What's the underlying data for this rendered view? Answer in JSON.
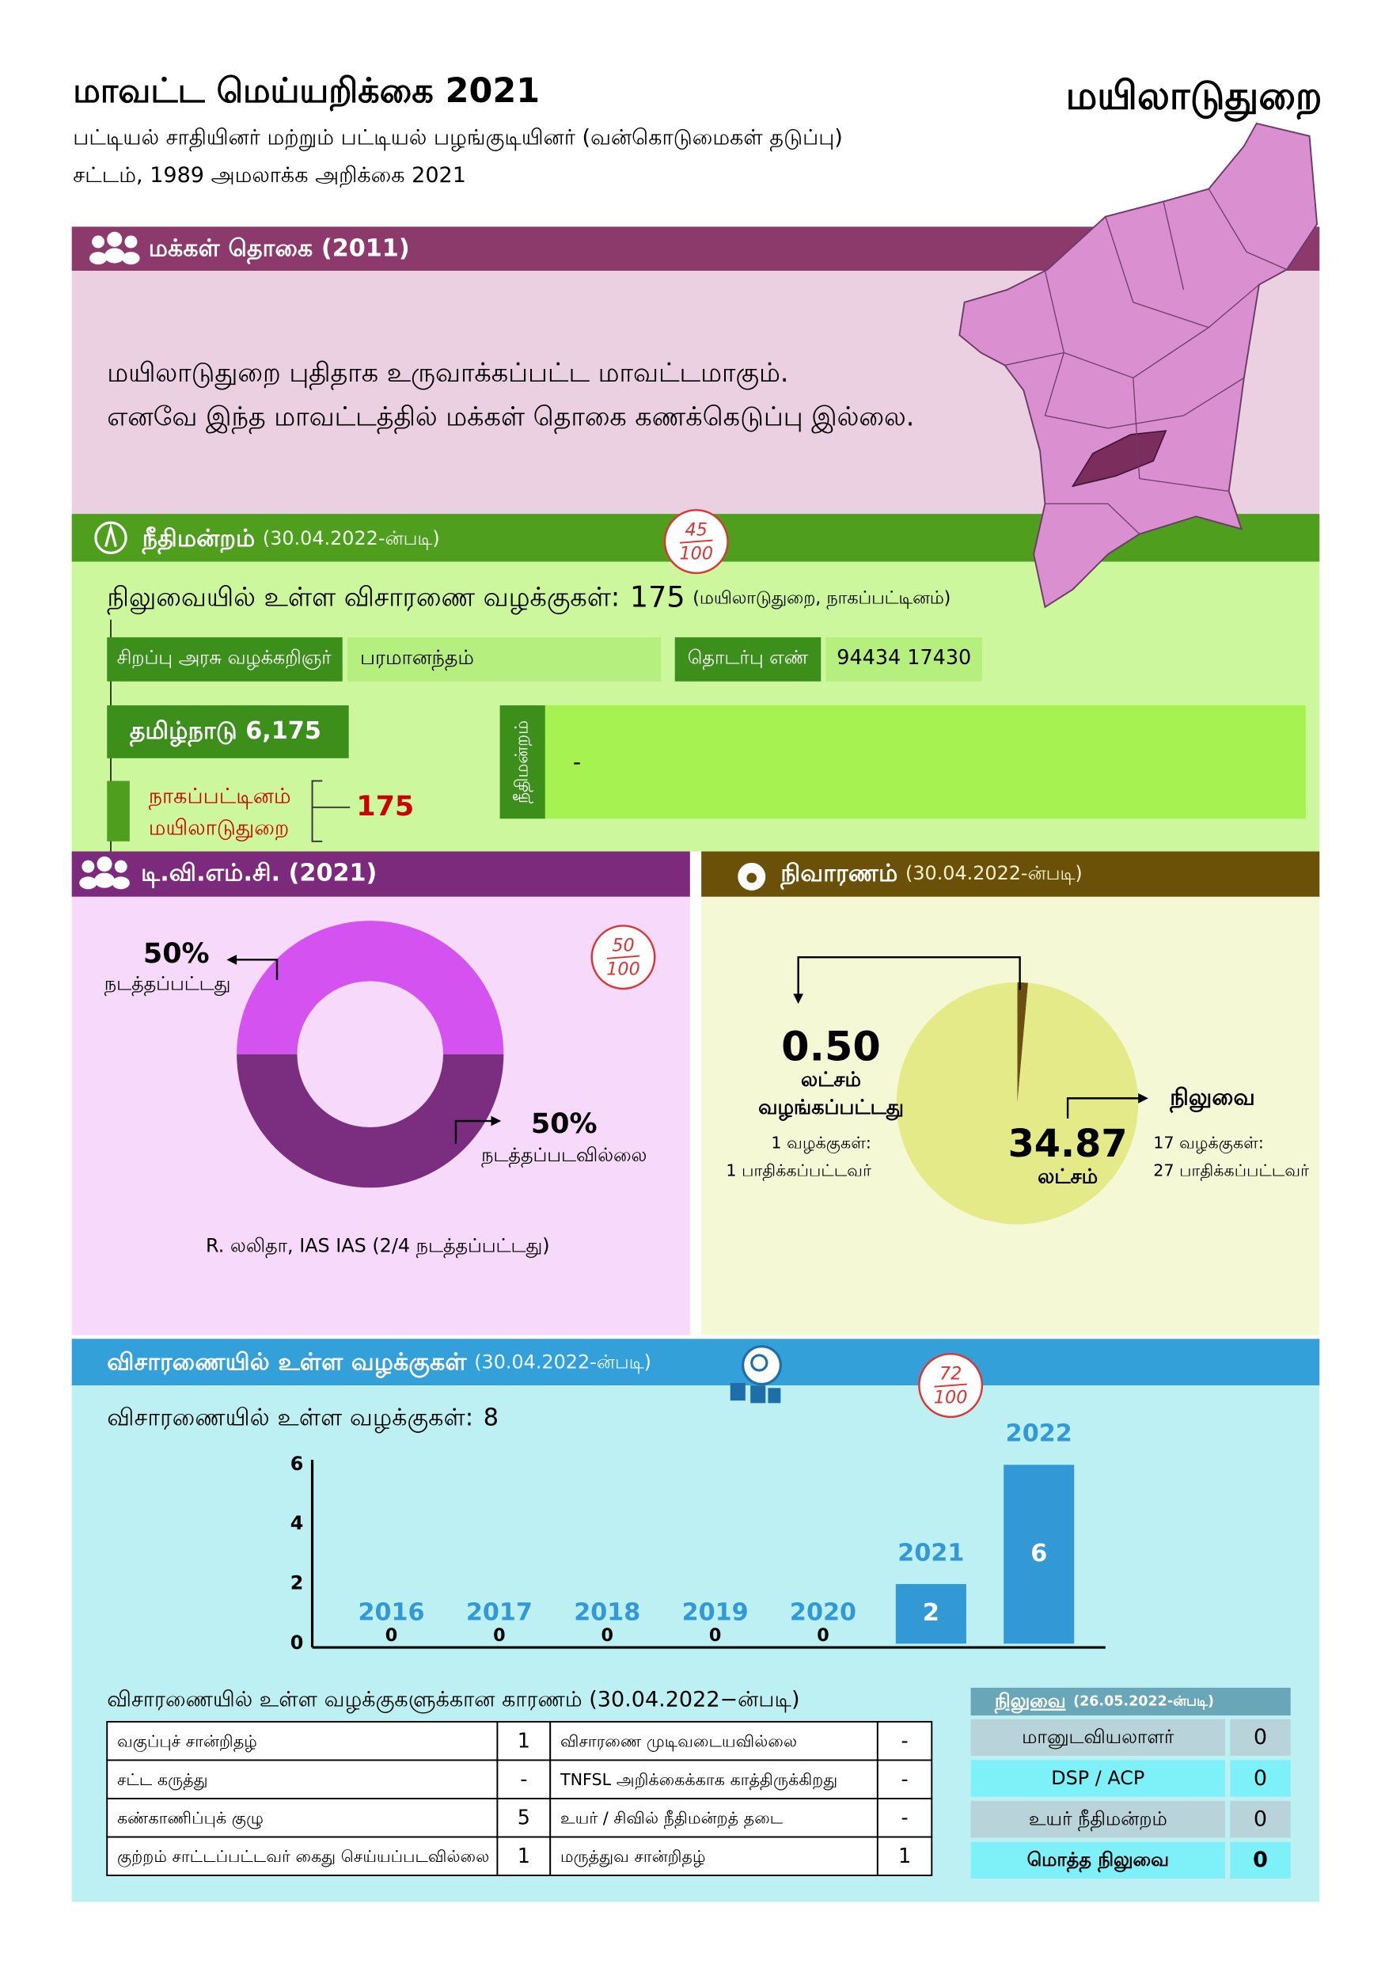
{
  "header": {
    "title": "மாவட்ட மெய்யறிக்கை 2021",
    "district": "மயிலாடுதுறை",
    "subtitle_lines": [
      "பட்டியல் சாதியினர் மற்றும் பட்டியல் பழங்குடியினர் (வன்கொடுமைகள் தடுப்பு)",
      "சட்டம், 1989 அமலாக்க அறிக்கை 2021"
    ]
  },
  "population": {
    "heading": "மக்கள் தொகை (2011)",
    "lines": [
      "மயிலாடுதுறை புதிதாக உருவாக்கப்பட்ட மாவட்டமாகும்.",
      "எனவே இந்த மாவட்டத்தில் மக்கள் தொகை கணக்கெடுப்பு இல்லை."
    ]
  },
  "court": {
    "heading": "நீதிமன்றம்",
    "date": "(30.04.2022-ன்படி)",
    "score": {
      "value": 45,
      "max": 100
    },
    "pending_label": "நிலுவையில் உள்ள விசாரணை வழக்குகள்:",
    "pending": 175,
    "pending_note": "(மயிலாடுதுறை, நாகப்பட்டினம்)",
    "prosecutor_label": "சிறப்பு அரசு வழக்கறிஞர்",
    "prosecutor": "பரமானந்தம்",
    "contact_label": "தொடர்பு எண்",
    "contact": "94434 17430",
    "state": "தமிழ்நாடு 6,175",
    "districts": [
      "நாகப்பட்டினம்",
      "மயிலாடுதுறை"
    ],
    "district_cases": 175,
    "court_label": "நீதிமன்றம்",
    "court_value": "-"
  },
  "tvmc": {
    "heading": "டி.வி.எம்.சி. (2021)",
    "score": {
      "value": 50,
      "max": 100
    },
    "note": "R. லலிதா, IAS IAS (2/4 நடத்தப்பட்டது)"
  },
  "relief": {
    "heading": "நிவாரணம்",
    "date": "(30.04.2022-ன்படி)",
    "unit": "லட்சம்",
    "paid_details": [
      "1 வழக்குகள்:",
      "1 பாதிக்கப்பட்டவர்"
    ],
    "pending_details": [
      "17 வழக்குகள்:",
      "27 பாதிக்கப்பட்டவர்"
    ]
  },
  "trial": {
    "heading": "விசாரணையில் உள்ள வழக்குகள்",
    "date": "(30.04.2022-ன்படி)",
    "score": {
      "value": 72,
      "max": 100
    },
    "count_label": "விசாரணையில் உள்ள வழக்குகள்:",
    "count": 8,
    "reasons_title": "விசாரணையில் உள்ள வழக்குகளுக்கான காரணம் (30.04.2022−ன்படி)",
    "reasons": [
      [
        "வகுப்புச் சான்றிதழ்",
        "1",
        "விசாரணை முடிவடையவில்லை",
        "-"
      ],
      [
        "சட்ட கருத்து",
        "-",
        "TNFSL அறிக்கைக்காக காத்திருக்கிறது",
        "-"
      ],
      [
        "கண்காணிப்புக் குழு",
        "5",
        "உயர் / சிவில் நீதிமன்றத் தடை",
        "-"
      ],
      [
        "குற்றம் சாட்டப்பட்டவர் கைது செய்யப்படவில்லை",
        "1",
        "மருத்துவ சான்றிதழ்",
        "1"
      ]
    ]
  },
  "pending_table": {
    "title": "நிலுவை",
    "date": "(26.05.2022-ன்படி)",
    "rows": [
      [
        "மானுடவியலாளர்",
        "0"
      ],
      [
        "DSP / ACP",
        "0"
      ],
      [
        "உயர் நீதிமன்றம்",
        "0"
      ],
      [
        "மொத்த நிலுவை",
        "0"
      ]
    ]
  },
  "chart_data": [
    {
      "type": "donut",
      "categories": [
        "நடத்தப்பட்டது",
        "நடத்தப்படவில்லை"
      ],
      "values": [
        50,
        50
      ],
      "value_labels": [
        "50%",
        "50%"
      ],
      "colors": [
        "#d452ef",
        "#7b2d80"
      ]
    },
    {
      "type": "pie",
      "categories": [
        "வழங்கப்பட்டது",
        "நிலுவை"
      ],
      "values": [
        0.5,
        34.87
      ],
      "value_labels": [
        "0.50",
        "34.87"
      ],
      "colors": [
        "#6b4f12",
        "#e5ea88"
      ]
    },
    {
      "type": "bar",
      "categories": [
        "2016",
        "2017",
        "2018",
        "2019",
        "2020",
        "2021",
        "2022"
      ],
      "values": [
        0,
        0,
        0,
        0,
        0,
        2,
        6
      ],
      "ylim": [
        0,
        6
      ],
      "yticks": [
        0,
        2,
        4,
        6
      ],
      "color": "#3399d6"
    }
  ]
}
